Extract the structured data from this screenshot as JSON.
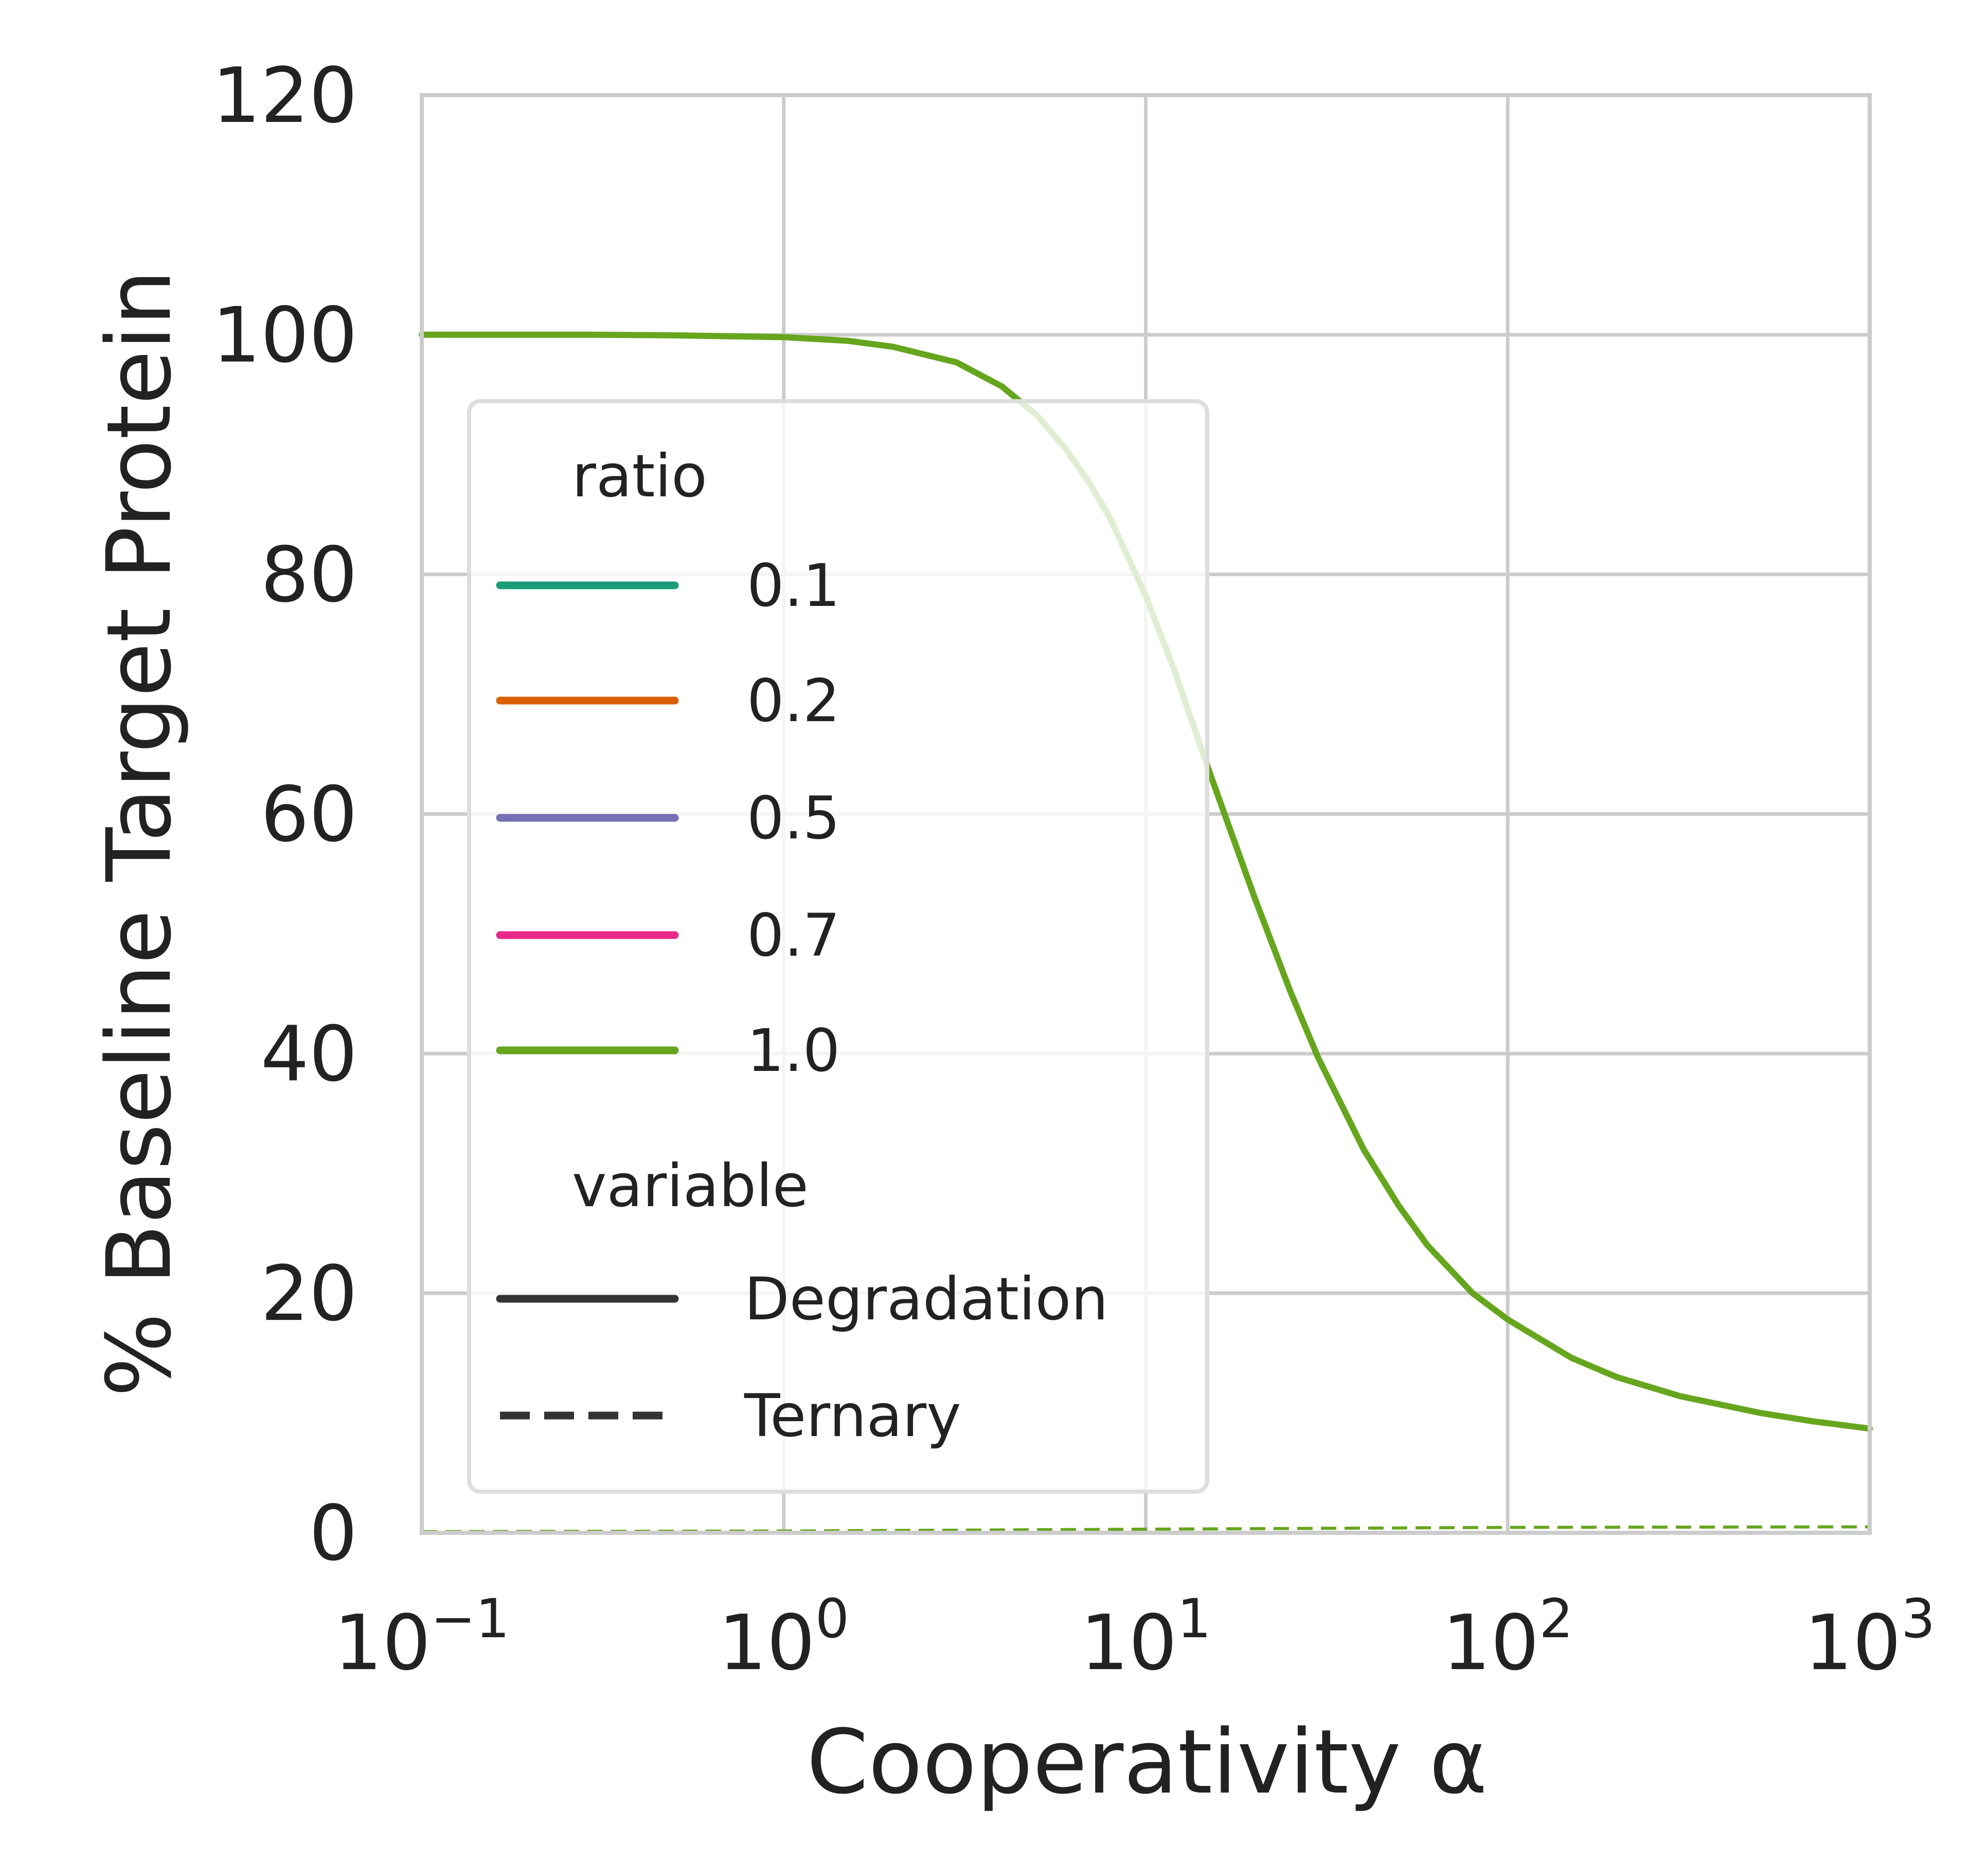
{
  "chart_data": {
    "type": "line",
    "xlabel": "Cooperativity α",
    "ylabel": "% Baseline Target Protein",
    "x_scale": "log",
    "xlim": [
      0.1,
      1000
    ],
    "ylim": [
      0,
      120
    ],
    "grid": true,
    "x_ticks": [
      {
        "value": 0.1,
        "base": "10",
        "exp": "−1"
      },
      {
        "value": 1,
        "base": "10",
        "exp": "0"
      },
      {
        "value": 10,
        "base": "10",
        "exp": "1"
      },
      {
        "value": 100,
        "base": "10",
        "exp": "2"
      },
      {
        "value": 1000,
        "base": "10",
        "exp": "3"
      }
    ],
    "y_ticks": [
      {
        "value": 0,
        "label": "0"
      },
      {
        "value": 20,
        "label": "20"
      },
      {
        "value": 40,
        "label": "40"
      },
      {
        "value": 60,
        "label": "60"
      },
      {
        "value": 80,
        "label": "80"
      },
      {
        "value": 100,
        "label": "100"
      },
      {
        "value": 120,
        "label": "120"
      }
    ],
    "series": [
      {
        "ratio": "1.0",
        "variable": "Degradation",
        "color": "#66a61e",
        "dash": "solid",
        "points": [
          [
            0.1,
            100.0
          ],
          [
            0.3,
            100.0
          ],
          [
            0.5,
            99.95
          ],
          [
            1,
            99.8
          ],
          [
            1.5,
            99.5
          ],
          [
            2,
            99.0
          ],
          [
            3,
            97.7
          ],
          [
            4,
            95.7
          ],
          [
            5,
            93.3
          ],
          [
            6,
            90.5
          ],
          [
            7,
            87.6
          ],
          [
            8,
            84.6
          ],
          [
            10,
            78.2
          ],
          [
            12,
            72.0
          ],
          [
            15,
            63.5
          ],
          [
            20,
            53.0
          ],
          [
            25,
            45.3
          ],
          [
            30,
            39.6
          ],
          [
            40,
            32.0
          ],
          [
            50,
            27.3
          ],
          [
            60,
            24.0
          ],
          [
            80,
            20.0
          ],
          [
            100,
            17.8
          ],
          [
            150,
            14.6
          ],
          [
            200,
            13.0
          ],
          [
            300,
            11.4
          ],
          [
            500,
            10.0
          ],
          [
            700,
            9.3
          ],
          [
            1000,
            8.7
          ]
        ]
      },
      {
        "ratio": "1.0",
        "variable": "Ternary",
        "color": "#66a61e",
        "dash": "dashed",
        "points": [
          [
            0.1,
            0.1
          ],
          [
            1,
            0.15
          ],
          [
            10,
            0.3
          ],
          [
            100,
            0.45
          ],
          [
            1000,
            0.5
          ]
        ]
      }
    ],
    "legend": {
      "placement": "center-left",
      "ratio_title": "ratio",
      "ratio_items": [
        {
          "label": "0.1",
          "color": "#1b9e77"
        },
        {
          "label": "0.2",
          "color": "#d95f02"
        },
        {
          "label": "0.5",
          "color": "#7570b3"
        },
        {
          "label": "0.7",
          "color": "#e7298a"
        },
        {
          "label": "1.0",
          "color": "#66a61e"
        }
      ],
      "variable_title": "variable",
      "variable_items": [
        {
          "label": "Degradation",
          "style": "solid",
          "color": "#333333"
        },
        {
          "label": "Ternary",
          "style": "dashed",
          "color": "#333333"
        }
      ]
    }
  }
}
